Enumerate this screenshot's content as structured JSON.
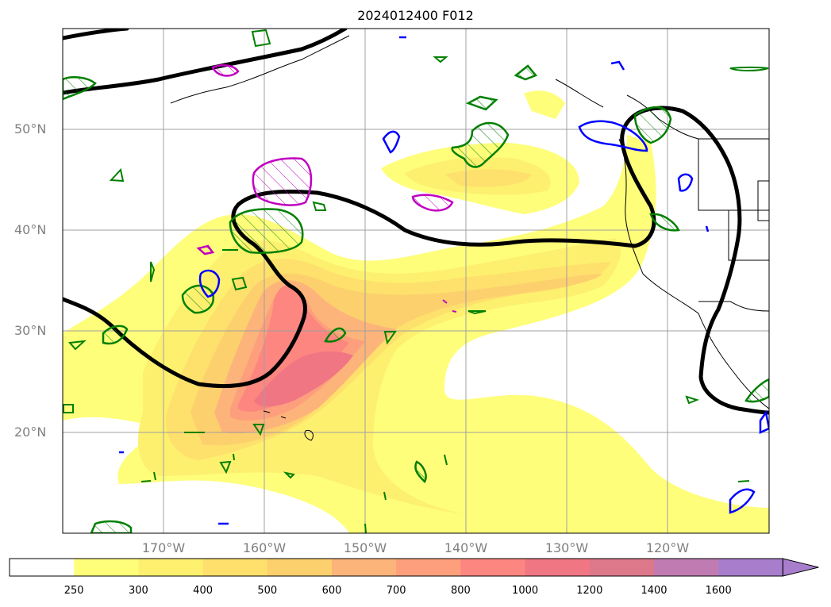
{
  "title": "2024012400 F012",
  "lat_labels": [
    "50°N",
    "40°N",
    "30°N",
    "20°N"
  ],
  "lon_labels": [
    "170°W",
    "160°W",
    "150°W",
    "140°W",
    "130°W",
    "120°W"
  ],
  "colorbar": {
    "ticks": [
      "250",
      "300",
      "400",
      "500",
      "600",
      "700",
      "800",
      "1000",
      "1200",
      "1400",
      "1600"
    ],
    "colors": [
      "#ffffff",
      "#fefe7a",
      "#fef06f",
      "#fee06c",
      "#fdd06e",
      "#fdb47a",
      "#fd9f7c",
      "#fd8680",
      "#f17683",
      "#dd788b",
      "#c07cb2",
      "#a87ecc"
    ],
    "extend": "max"
  },
  "contour_colors": {
    "black": "#000000",
    "green": "#008000",
    "magenta": "#c000c0",
    "blue": "#0000ff"
  }
}
